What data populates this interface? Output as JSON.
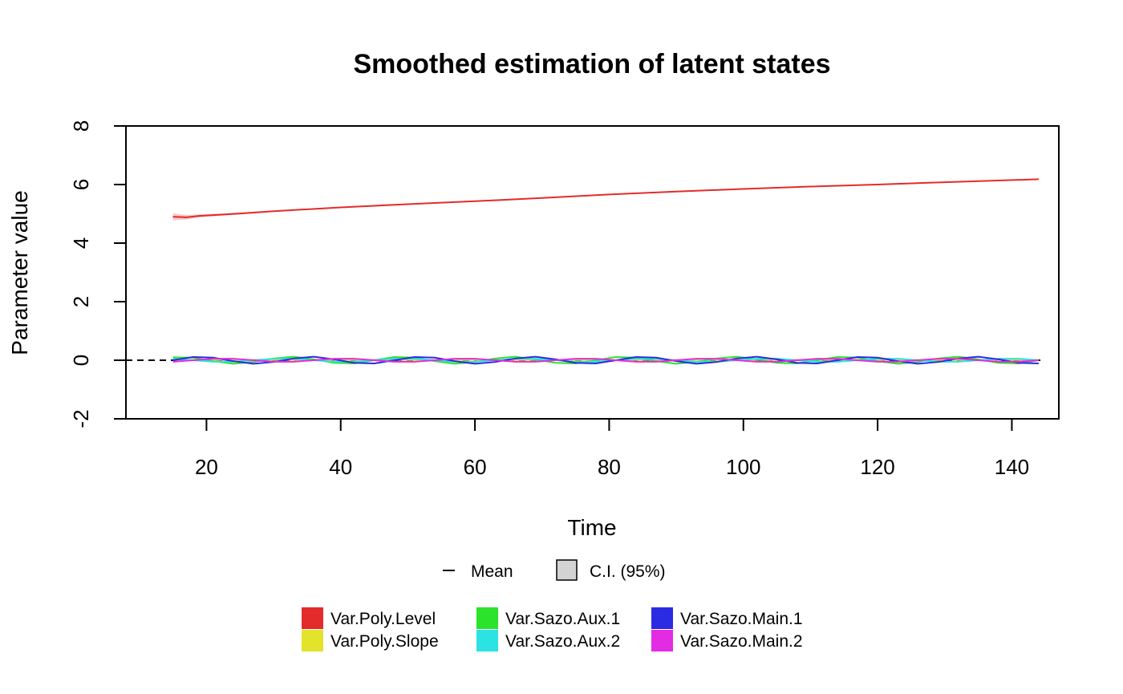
{
  "chart_data": {
    "type": "line",
    "title": "Smoothed estimation of latent states",
    "xlabel": "Time",
    "ylabel": "Parameter value",
    "xlim": [
      8,
      147
    ],
    "ylim": [
      -2,
      8
    ],
    "x_ticks": [
      20,
      40,
      60,
      80,
      100,
      120,
      140
    ],
    "y_ticks": [
      -2,
      0,
      2,
      4,
      6,
      8
    ],
    "x_tick_labels": [
      "20",
      "40",
      "60",
      "80",
      "100",
      "120",
      "140"
    ],
    "y_tick_labels": [
      "-2",
      "0",
      "2",
      "4",
      "6",
      "8"
    ],
    "reference_line": {
      "y": 0,
      "style": "dashed",
      "color": "#000000"
    },
    "grid": false,
    "legend_top": [
      {
        "label": "Mean",
        "symbol": "line"
      },
      {
        "label": "C.I. (95%)",
        "symbol": "box"
      }
    ],
    "legend_placement": "bottom",
    "series": [
      {
        "name": "Var.Poly.Level",
        "color": "#E32B2B",
        "x": [
          15,
          17,
          19,
          22,
          25,
          30,
          40,
          50,
          60,
          70,
          80,
          90,
          100,
          110,
          120,
          130,
          144
        ],
        "y": [
          4.9,
          4.88,
          4.93,
          4.97,
          5.01,
          5.09,
          5.22,
          5.33,
          5.43,
          5.54,
          5.66,
          5.76,
          5.85,
          5.93,
          6.0,
          6.08,
          6.18
        ],
        "ci_lower": [
          4.78,
          4.8,
          4.88,
          4.93,
          4.98,
          5.07,
          5.2,
          5.32,
          5.42,
          5.53,
          5.65,
          5.75,
          5.84,
          5.92,
          5.99,
          6.07,
          6.16
        ],
        "ci_upper": [
          5.02,
          4.96,
          4.98,
          5.01,
          5.04,
          5.11,
          5.24,
          5.34,
          5.44,
          5.55,
          5.67,
          5.77,
          5.86,
          5.94,
          6.01,
          6.09,
          6.2
        ]
      },
      {
        "name": "Var.Poly.Slope",
        "color": "#E3E32B",
        "x": [
          15,
          30,
          45,
          60,
          75,
          90,
          105,
          120,
          135,
          144
        ],
        "y": [
          0.01,
          0.01,
          0.01,
          0.01,
          0.01,
          0.01,
          0.01,
          0.01,
          0.01,
          0.01
        ]
      },
      {
        "name": "Var.Sazo.Aux.1",
        "color": "#2BE32B",
        "x": [
          15,
          18,
          21,
          24,
          27,
          30,
          33,
          36,
          39,
          42,
          45,
          48,
          51,
          54,
          57,
          60,
          63,
          66,
          69,
          72,
          75,
          78,
          81,
          84,
          87,
          90,
          93,
          96,
          99,
          102,
          105,
          108,
          111,
          114,
          117,
          120,
          123,
          126,
          129,
          132,
          135,
          138,
          141,
          144
        ],
        "y": [
          0.1,
          0.09,
          -0.03,
          -0.12,
          -0.06,
          0.06,
          0.12,
          0.03,
          -0.09,
          -0.11,
          0.0,
          0.11,
          0.09,
          -0.03,
          -0.12,
          -0.06,
          0.06,
          0.12,
          0.03,
          -0.09,
          -0.11,
          0.0,
          0.11,
          0.09,
          -0.03,
          -0.12,
          -0.06,
          0.06,
          0.12,
          0.03,
          -0.09,
          -0.11,
          0.0,
          0.11,
          0.09,
          -0.03,
          -0.12,
          -0.06,
          0.06,
          0.12,
          0.03,
          -0.09,
          -0.11,
          0.0
        ]
      },
      {
        "name": "Var.Sazo.Aux.2",
        "color": "#2BE3E3",
        "x": [
          15,
          18,
          21,
          24,
          27,
          30,
          33,
          36,
          39,
          42,
          45,
          48,
          51,
          54,
          57,
          60,
          63,
          66,
          69,
          72,
          75,
          78,
          81,
          84,
          87,
          90,
          93,
          96,
          99,
          102,
          105,
          108,
          111,
          114,
          117,
          120,
          123,
          126,
          129,
          132,
          135,
          138,
          141,
          144
        ],
        "y": [
          0.05,
          0.0,
          -0.05,
          -0.05,
          0.0,
          0.05,
          0.05,
          0.0,
          -0.05,
          -0.05,
          0.0,
          0.05,
          0.05,
          0.0,
          -0.05,
          -0.05,
          0.0,
          0.05,
          0.05,
          0.0,
          -0.05,
          -0.05,
          0.0,
          0.05,
          0.05,
          0.0,
          -0.05,
          -0.05,
          0.0,
          0.05,
          0.05,
          0.0,
          -0.05,
          -0.05,
          0.0,
          0.05,
          0.05,
          0.0,
          -0.05,
          -0.05,
          0.0,
          0.05,
          0.05,
          0.0
        ]
      },
      {
        "name": "Var.Sazo.Main.1",
        "color": "#2B2BE3",
        "x": [
          15,
          18,
          21,
          24,
          27,
          30,
          33,
          36,
          39,
          42,
          45,
          48,
          51,
          54,
          57,
          60,
          63,
          66,
          69,
          72,
          75,
          78,
          81,
          84,
          87,
          90,
          93,
          96,
          99,
          102,
          105,
          108,
          111,
          114,
          117,
          120,
          123,
          126,
          129,
          132,
          135,
          138,
          141,
          144
        ],
        "y": [
          0.0,
          0.11,
          0.09,
          -0.03,
          -0.12,
          -0.06,
          0.06,
          0.12,
          0.03,
          -0.09,
          -0.11,
          0.0,
          0.11,
          0.09,
          -0.03,
          -0.12,
          -0.06,
          0.06,
          0.12,
          0.03,
          -0.09,
          -0.11,
          0.0,
          0.11,
          0.09,
          -0.03,
          -0.12,
          -0.06,
          0.06,
          0.12,
          0.03,
          -0.09,
          -0.11,
          0.0,
          0.11,
          0.09,
          -0.03,
          -0.12,
          -0.06,
          0.06,
          0.12,
          0.03,
          -0.09,
          -0.11
        ]
      },
      {
        "name": "Var.Sazo.Main.2",
        "color": "#E32BE3",
        "x": [
          15,
          18,
          21,
          24,
          27,
          30,
          33,
          36,
          39,
          42,
          45,
          48,
          51,
          54,
          57,
          60,
          63,
          66,
          69,
          72,
          75,
          78,
          81,
          84,
          87,
          90,
          93,
          96,
          99,
          102,
          105,
          108,
          111,
          114,
          117,
          120,
          123,
          126,
          129,
          132,
          135,
          138,
          141,
          144
        ],
        "y": [
          -0.05,
          0.0,
          0.05,
          0.05,
          0.0,
          -0.05,
          -0.05,
          0.0,
          0.05,
          0.05,
          0.0,
          -0.05,
          -0.05,
          0.0,
          0.05,
          0.05,
          0.0,
          -0.05,
          -0.05,
          0.0,
          0.05,
          0.05,
          0.0,
          -0.05,
          -0.05,
          0.0,
          0.05,
          0.05,
          0.0,
          -0.05,
          -0.05,
          0.0,
          0.05,
          0.05,
          0.0,
          -0.05,
          -0.05,
          0.0,
          0.05,
          0.05,
          0.0,
          -0.05,
          -0.05,
          0.0
        ]
      }
    ],
    "legend_series": [
      {
        "label": "Var.Poly.Level",
        "color": "#E32B2B"
      },
      {
        "label": "Var.Poly.Slope",
        "color": "#E3E32B"
      },
      {
        "label": "Var.Sazo.Aux.1",
        "color": "#2BE32B"
      },
      {
        "label": "Var.Sazo.Aux.2",
        "color": "#2BE3E3"
      },
      {
        "label": "Var.Sazo.Main.1",
        "color": "#2B2BE3"
      },
      {
        "label": "Var.Sazo.Main.2",
        "color": "#E32BE3"
      }
    ]
  }
}
